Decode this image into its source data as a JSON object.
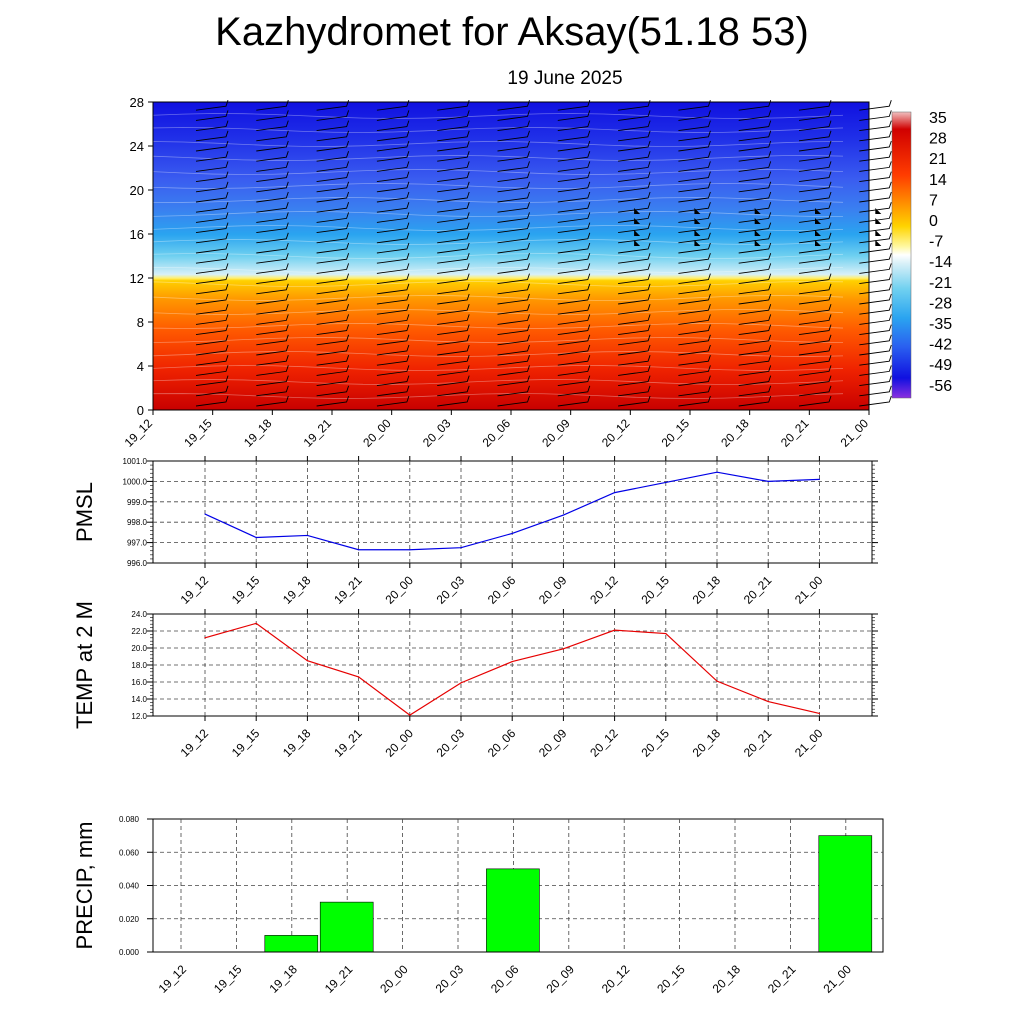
{
  "header": {
    "title": "Kazhydromet for Aksay(51.18 53)",
    "date": "19 June 2025"
  },
  "chart_data": [
    {
      "type": "heatmap",
      "title": "",
      "xlabel": "",
      "ylabel": "",
      "x": [
        "19_12",
        "19_15",
        "19_18",
        "19_21",
        "20_00",
        "20_03",
        "20_06",
        "20_09",
        "20_12",
        "20_15",
        "20_18",
        "20_21",
        "21_00"
      ],
      "y_ticks": [
        "0",
        "4",
        "8",
        "12",
        "16",
        "20",
        "24",
        "28"
      ],
      "ylim": [
        0,
        28
      ],
      "colorbar_ticks": [
        "35",
        "28",
        "21",
        "14",
        "7",
        "0",
        "-7",
        "-14",
        "-21",
        "-28",
        "-35",
        "-42",
        "-49",
        "-56"
      ],
      "colormap": {
        "warm_levels": [
          "#c80000",
          "#e60a00",
          "#ff3c00",
          "#ff7800",
          "#ffaa00",
          "#ffd400",
          "#fff070"
        ],
        "cold_levels": [
          "#d8f0f8",
          "#6fd0f0",
          "#2aa4f0",
          "#2a70f0",
          "#1a40e8",
          "#1010e0",
          "#7a30e0"
        ]
      },
      "freezing_level_km": 12,
      "wind_barbs": "present",
      "pennant_barbs_columns": [
        "20_12",
        "20_15",
        "20_18",
        "20_21",
        "21_00"
      ]
    },
    {
      "type": "line",
      "ylabel": "PMSL",
      "x": [
        "19_12",
        "19_15",
        "19_18",
        "19_21",
        "20_00",
        "20_03",
        "20_06",
        "20_09",
        "20_12",
        "20_15",
        "20_18",
        "20_21",
        "21_00"
      ],
      "values": [
        998.4,
        997.25,
        997.35,
        996.65,
        996.65,
        996.75,
        997.45,
        998.35,
        999.45,
        999.95,
        1000.45,
        1000.0,
        1000.1
      ],
      "ylim": [
        996.0,
        1001.0
      ],
      "y_ticks": [
        "996.0",
        "997.0",
        "998.0",
        "999.0",
        "1000.0",
        "1001.0"
      ],
      "color": "#0000e6",
      "grid": true
    },
    {
      "type": "line",
      "ylabel": "TEMP at 2 M",
      "x": [
        "19_12",
        "19_15",
        "19_18",
        "19_21",
        "20_00",
        "20_03",
        "20_06",
        "20_09",
        "20_12",
        "20_15",
        "20_18",
        "20_21",
        "21_00"
      ],
      "values": [
        21.2,
        22.9,
        18.5,
        16.6,
        12.1,
        15.9,
        18.4,
        19.9,
        22.1,
        21.7,
        16.1,
        13.7,
        12.3
      ],
      "ylim": [
        12.0,
        24.0
      ],
      "y_ticks": [
        "12.0",
        "14.0",
        "16.0",
        "18.0",
        "20.0",
        "22.0",
        "24.0"
      ],
      "color": "#e60000",
      "grid": true
    },
    {
      "type": "bar",
      "ylabel": "PRECIP, mm",
      "categories": [
        "19_12",
        "19_15",
        "19_18",
        "19_21",
        "20_00",
        "20_03",
        "20_06",
        "20_09",
        "20_12",
        "20_15",
        "20_18",
        "20_21",
        "21_00"
      ],
      "values": [
        0,
        0,
        0.01,
        0.03,
        0,
        0,
        0.05,
        0,
        0,
        0,
        0,
        0,
        0.07
      ],
      "ylim": [
        0,
        0.08
      ],
      "y_ticks": [
        "0.000",
        "0.020",
        "0.040",
        "0.060",
        "0.080"
      ],
      "color": "#00ff00",
      "grid": true
    }
  ]
}
